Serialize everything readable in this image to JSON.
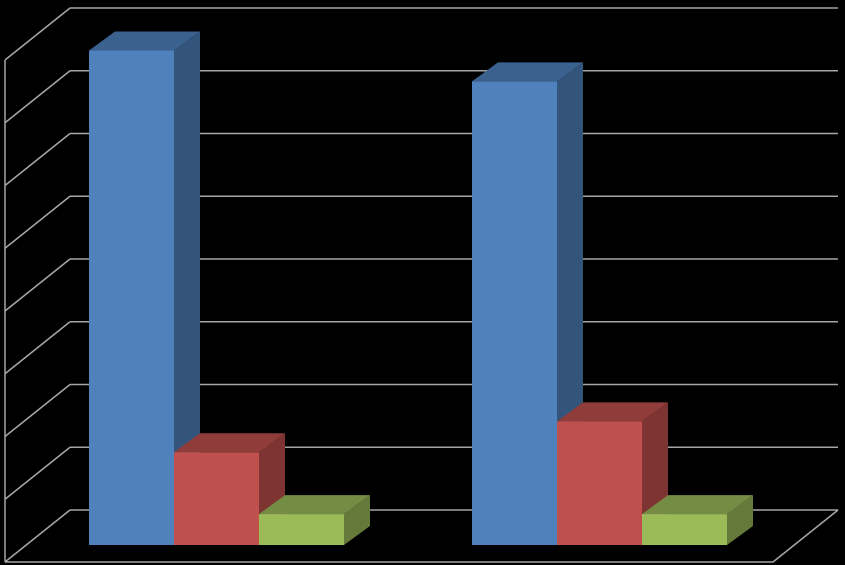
{
  "chart_data": {
    "type": "bar",
    "style": "3d-clustered-column",
    "categories": [
      "",
      ""
    ],
    "series": [
      {
        "color": "#4F81BD",
        "values": [
          8.0,
          7.5
        ]
      },
      {
        "color": "#C0504D",
        "values": [
          1.5,
          2.0
        ]
      },
      {
        "color": "#9BBB59",
        "values": [
          0.5,
          0.5
        ]
      }
    ],
    "ylim": [
      0,
      8
    ],
    "grid": true,
    "legend": "none",
    "background": "#000000",
    "gridline_color": "#A6A6A6"
  }
}
